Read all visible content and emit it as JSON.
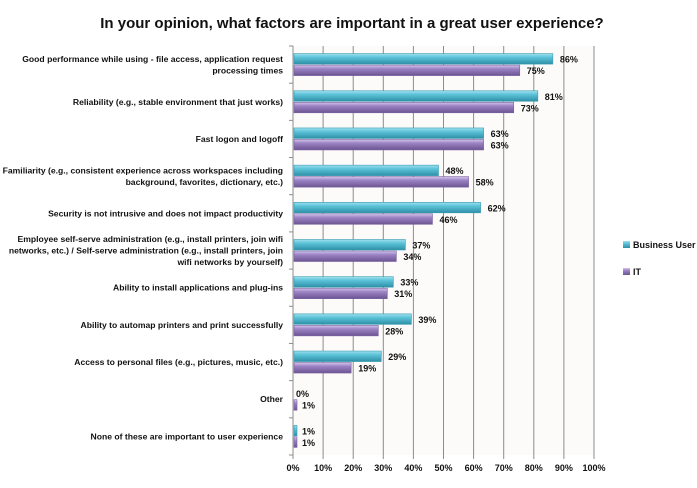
{
  "chart_data": {
    "type": "bar",
    "orientation": "horizontal",
    "title": "In your opinion, what factors are important in a great user experience?",
    "xlabel": "",
    "ylabel": "",
    "xlim": [
      0,
      100
    ],
    "x_ticks": [
      "0%",
      "10%",
      "20%",
      "30%",
      "40%",
      "50%",
      "60%",
      "70%",
      "80%",
      "90%",
      "100%"
    ],
    "grid": "vertical",
    "legend_position": "right",
    "categories": [
      [
        "Good performance while using - file access, application request",
        "processing times"
      ],
      [
        "Reliability (e.g., stable environment that just works)"
      ],
      [
        "Fast logon and logoff"
      ],
      [
        "Familiarity (e.g., consistent experience across workspaces including",
        "background, favorites, dictionary, etc.)"
      ],
      [
        "Security is not intrusive and does not impact productivity"
      ],
      [
        "Employee self-serve administration (e.g., install printers, join wifi",
        "networks, etc.) / Self-serve administration (e.g., install printers, join",
        "wifi networks by yourself)"
      ],
      [
        "Ability to install applications and plug-ins"
      ],
      [
        "Ability to automap printers and print successfully"
      ],
      [
        "Access to personal files (e.g., pictures, music, etc.)"
      ],
      [
        "Other"
      ],
      [
        "None of these are important to user experience"
      ]
    ],
    "series": [
      {
        "name": "Business User",
        "color": "#4fb8cf",
        "values": [
          86,
          81,
          63,
          48,
          62,
          37,
          33,
          39,
          29,
          0,
          1
        ],
        "labels": [
          "86%",
          "81%",
          "63%",
          "48%",
          "62%",
          "37%",
          "33%",
          "39%",
          "29%",
          "0%",
          "1%"
        ]
      },
      {
        "name": "IT",
        "color": "#8f76b8",
        "values": [
          75,
          73,
          63,
          58,
          46,
          34,
          31,
          28,
          19,
          1,
          1
        ],
        "labels": [
          "75%",
          "73%",
          "63%",
          "58%",
          "46%",
          "34%",
          "31%",
          "28%",
          "19%",
          "1%",
          "1%"
        ]
      }
    ]
  }
}
